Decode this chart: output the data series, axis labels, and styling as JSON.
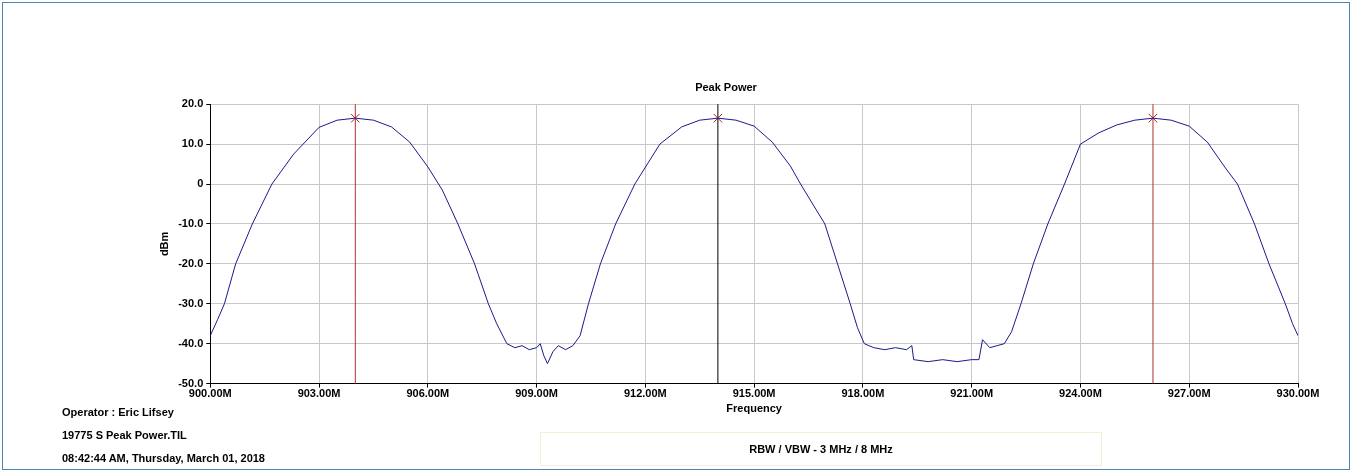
{
  "chart_data": {
    "type": "line",
    "title": "Peak Power",
    "xlabel": "Frequency",
    "ylabel": "dBm",
    "xlim": [
      900,
      930
    ],
    "xticks": [
      {
        "value": 900,
        "label": "900.00M"
      },
      {
        "value": 903,
        "label": "903.00M"
      },
      {
        "value": 906,
        "label": "906.00M"
      },
      {
        "value": 909,
        "label": "909.00M"
      },
      {
        "value": 912,
        "label": "912.00M"
      },
      {
        "value": 915,
        "label": "915.00M"
      },
      {
        "value": 918,
        "label": "918.00M"
      },
      {
        "value": 921,
        "label": "921.00M"
      },
      {
        "value": 924,
        "label": "924.00M"
      },
      {
        "value": 927,
        "label": "927.00M"
      },
      {
        "value": 930,
        "label": "930.00M"
      }
    ],
    "ylim": [
      -50,
      20
    ],
    "yticks": [
      {
        "value": -50,
        "label": "-50.0"
      },
      {
        "value": -40,
        "label": "-40.0"
      },
      {
        "value": -30,
        "label": "-30.0"
      },
      {
        "value": -20,
        "label": "-20.0"
      },
      {
        "value": -10,
        "label": "-10.0"
      },
      0,
      {
        "value": 10,
        "label": "10.0"
      },
      {
        "value": 20,
        "label": "20.0"
      }
    ],
    "grid": true,
    "legend": false,
    "series": [
      {
        "color": "#1a1a8c",
        "marker": "none",
        "x": [
          900,
          900.2,
          900.39,
          900.7,
          901.16,
          901.7,
          902.3,
          903,
          903.5,
          904,
          904.5,
          905,
          905.5,
          906,
          906.4,
          906.83,
          907.29,
          907.67,
          907.9,
          908.18,
          908.4,
          908.6,
          908.8,
          909.0,
          909.1,
          909.2,
          909.3,
          909.45,
          909.6,
          909.8,
          910.0,
          910.2,
          910.43,
          910.76,
          911.18,
          911.71,
          912.4,
          913,
          913.5,
          914,
          914.5,
          915,
          915.5,
          916,
          916.28,
          916.95,
          917.3,
          917.65,
          917.85,
          918.04,
          918.3,
          918.6,
          918.9,
          919.2,
          919.35,
          919.4,
          919.8,
          920.2,
          920.6,
          921.0,
          921.2,
          921.3,
          921.5,
          921.7,
          921.9,
          922.1,
          922.36,
          922.7,
          923.1,
          923.56,
          924.0,
          924.5,
          925,
          925.5,
          926,
          926.5,
          927,
          927.5,
          928,
          928.33,
          928.8,
          929.2,
          929.65,
          929.85,
          930
        ],
        "values": [
          -38,
          -34,
          -30,
          -20,
          -10,
          0,
          7.5,
          14.2,
          16,
          16.5,
          16,
          14.3,
          10.5,
          4.3,
          -1.5,
          -10,
          -20,
          -30,
          -35,
          -40,
          -41,
          -40.5,
          -41.5,
          -41,
          -40,
          -43,
          -45,
          -42,
          -40.5,
          -41.5,
          -40.5,
          -38,
          -30,
          -20,
          -10,
          0,
          10,
          14.3,
          16,
          16.5,
          16,
          14.5,
          10.5,
          4.5,
          0,
          -10,
          -20,
          -30,
          -36,
          -40,
          -41,
          -41.5,
          -41,
          -41.5,
          -40.5,
          -44,
          -44.5,
          -44,
          -44.5,
          -44,
          -44,
          -39,
          -41,
          -40.5,
          -40,
          -37,
          -30,
          -20,
          -10,
          0,
          10,
          12.8,
          14.8,
          16,
          16.5,
          16,
          14.5,
          10.5,
          4,
          0,
          -10,
          -20,
          -30,
          -35,
          -38
        ]
      },
      {
        "type": "scatter",
        "color": "#a0282a",
        "marker": "cross",
        "x": [
          904,
          914,
          926
        ],
        "values": [
          16.5,
          16.5,
          16.5
        ]
      }
    ],
    "ref_lines": [
      {
        "axis": "x",
        "value": 904,
        "color": "#b03030"
      },
      {
        "axis": "x",
        "value": 914,
        "color": "#000000"
      },
      {
        "axis": "x",
        "value": 926,
        "color": "#b03030"
      }
    ],
    "annotations": [
      "Operator : Eric Lifsey",
      "19775 S Peak Power.TIL",
      "08:42:44 AM, Thursday, March 01, 2018",
      "RBW / VBW - 3 MHz / 8 MHz"
    ]
  }
}
